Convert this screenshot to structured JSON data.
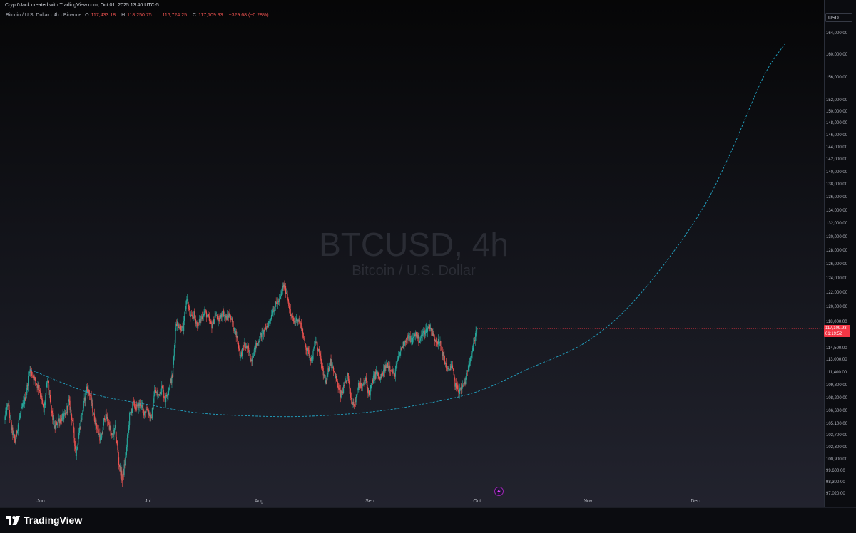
{
  "attribution": "Crypt0Jack created with TradingView.com, Oct 01, 2025 13:40 UTC-5",
  "legend": {
    "symbol": "Bitcoin / U.S. Dollar · 4h · Binance",
    "o_label": "O",
    "o_value": "117,433.18",
    "h_label": "H",
    "h_value": "118,250.75",
    "l_label": "L",
    "l_value": "116,724.25",
    "c_label": "C",
    "c_value": "117,109.93",
    "change": "−329.68 (−0.28%)"
  },
  "watermark": {
    "title": "BTCUSD, 4h",
    "subtitle": "Bitcoin / U.S. Dollar"
  },
  "currency": "USD",
  "price_label": {
    "price": "117,109.93",
    "countdown": "01:19:52"
  },
  "branding": {
    "logo_text": "TradingView"
  },
  "colors": {
    "up": "#26a69a",
    "down": "#ef5350",
    "curve": "#22a3c3",
    "last_price": "#f23645"
  },
  "icons": {
    "event_marker": "lightning-bolt-icon",
    "logo": "tradingview-logo-icon"
  },
  "chart_data": {
    "type": "candlestick",
    "interval": "4h",
    "price_scale": "log",
    "ylim": [
      97020,
      166000
    ],
    "price_ticks": [
      "164,000.00",
      "160,000.00",
      "156,000.00",
      "152,000.00",
      "150,000.00",
      "148,000.00",
      "146,000.00",
      "144,000.00",
      "142,000.00",
      "140,000.00",
      "138,000.00",
      "136,000.00",
      "134,000.00",
      "132,000.00",
      "130,000.00",
      "128,000.00",
      "126,000.00",
      "124,000.00",
      "122,000.00",
      "120,000.00",
      "118,000.00",
      "114,500.00",
      "113,000.00",
      "111,400.00",
      "109,800.00",
      "108,200.00",
      "106,600.00",
      "105,100.00",
      "103,700.00",
      "102,300.00",
      "100,900.00",
      "99,600.00",
      "98,300.00",
      "97,020.00"
    ],
    "time_ticks": [
      "Jun",
      "Jul",
      "Aug",
      "Sep",
      "Oct",
      "Nov",
      "Dec"
    ],
    "time_tick_dates": [
      "2025-06-01",
      "2025-07-01",
      "2025-08-01",
      "2025-09-01",
      "2025-10-01",
      "2025-11-01",
      "2025-12-01"
    ],
    "x_range": [
      "2025-05-22",
      "2025-12-30"
    ],
    "price_path": [
      [
        "2025-05-22",
        105500
      ],
      [
        "2025-05-23",
        107500
      ],
      [
        "2025-05-24",
        104500
      ],
      [
        "2025-05-25",
        103000
      ],
      [
        "2025-05-26",
        105500
      ],
      [
        "2025-05-28",
        108500
      ],
      [
        "2025-05-29",
        111800
      ],
      [
        "2025-05-30",
        111000
      ],
      [
        "2025-06-01",
        109000
      ],
      [
        "2025-06-02",
        106500
      ],
      [
        "2025-06-03",
        110500
      ],
      [
        "2025-06-04",
        107000
      ],
      [
        "2025-06-05",
        104500
      ],
      [
        "2025-06-06",
        105500
      ],
      [
        "2025-06-08",
        106000
      ],
      [
        "2025-06-09",
        107800
      ],
      [
        "2025-06-10",
        105500
      ],
      [
        "2025-06-11",
        101500
      ],
      [
        "2025-06-12",
        104500
      ],
      [
        "2025-06-13",
        107000
      ],
      [
        "2025-06-14",
        109500
      ],
      [
        "2025-06-15",
        108500
      ],
      [
        "2025-06-16",
        106000
      ],
      [
        "2025-06-17",
        104500
      ],
      [
        "2025-06-18",
        103000
      ],
      [
        "2025-06-19",
        106000
      ],
      [
        "2025-06-20",
        105500
      ],
      [
        "2025-06-21",
        103500
      ],
      [
        "2025-06-22",
        104500
      ],
      [
        "2025-06-23",
        100500
      ],
      [
        "2025-06-24",
        98500
      ],
      [
        "2025-06-25",
        101500
      ],
      [
        "2025-06-26",
        106000
      ],
      [
        "2025-06-27",
        107500
      ],
      [
        "2025-06-28",
        107000
      ],
      [
        "2025-06-29",
        107500
      ],
      [
        "2025-06-30",
        106500
      ],
      [
        "2025-07-01",
        107000
      ],
      [
        "2025-07-02",
        105500
      ],
      [
        "2025-07-03",
        109000
      ],
      [
        "2025-07-04",
        108500
      ],
      [
        "2025-07-05",
        109500
      ],
      [
        "2025-07-06",
        108000
      ],
      [
        "2025-07-07",
        109500
      ],
      [
        "2025-07-08",
        111000
      ],
      [
        "2025-07-09",
        118000
      ],
      [
        "2025-07-10",
        117500
      ],
      [
        "2025-07-11",
        117000
      ],
      [
        "2025-07-12",
        121500
      ],
      [
        "2025-07-13",
        118500
      ],
      [
        "2025-07-14",
        119000
      ],
      [
        "2025-07-15",
        117500
      ],
      [
        "2025-07-16",
        118500
      ],
      [
        "2025-07-17",
        119500
      ],
      [
        "2025-07-18",
        118500
      ],
      [
        "2025-07-19",
        117500
      ],
      [
        "2025-07-20",
        119000
      ],
      [
        "2025-07-21",
        118000
      ],
      [
        "2025-07-22",
        119500
      ],
      [
        "2025-07-23",
        118500
      ],
      [
        "2025-07-24",
        119000
      ],
      [
        "2025-07-25",
        117500
      ],
      [
        "2025-07-26",
        116000
      ],
      [
        "2025-07-27",
        113500
      ],
      [
        "2025-07-28",
        115000
      ],
      [
        "2025-07-29",
        114500
      ],
      [
        "2025-07-30",
        113000
      ],
      [
        "2025-07-31",
        114500
      ],
      [
        "2025-08-01",
        115500
      ],
      [
        "2025-08-02",
        116500
      ],
      [
        "2025-08-03",
        117000
      ],
      [
        "2025-08-04",
        118000
      ],
      [
        "2025-08-05",
        119500
      ],
      [
        "2025-08-06",
        120500
      ],
      [
        "2025-08-07",
        121000
      ],
      [
        "2025-08-08",
        123000
      ],
      [
        "2025-08-09",
        122000
      ],
      [
        "2025-08-10",
        119000
      ],
      [
        "2025-08-11",
        118000
      ],
      [
        "2025-08-12",
        118500
      ],
      [
        "2025-08-13",
        117500
      ],
      [
        "2025-08-14",
        115000
      ],
      [
        "2025-08-15",
        114000
      ],
      [
        "2025-08-16",
        113000
      ],
      [
        "2025-08-17",
        115500
      ],
      [
        "2025-08-18",
        114000
      ],
      [
        "2025-08-19",
        111500
      ],
      [
        "2025-08-20",
        110000
      ],
      [
        "2025-08-21",
        113000
      ],
      [
        "2025-08-22",
        112000
      ],
      [
        "2025-08-23",
        110000
      ],
      [
        "2025-08-24",
        108500
      ],
      [
        "2025-08-25",
        109500
      ],
      [
        "2025-08-26",
        111000
      ],
      [
        "2025-08-27",
        108000
      ],
      [
        "2025-08-28",
        107500
      ],
      [
        "2025-08-29",
        110000
      ],
      [
        "2025-08-30",
        109500
      ],
      [
        "2025-08-31",
        110500
      ],
      [
        "2025-09-01",
        108500
      ],
      [
        "2025-09-02",
        110500
      ],
      [
        "2025-09-03",
        111500
      ],
      [
        "2025-09-04",
        110500
      ],
      [
        "2025-09-05",
        111500
      ],
      [
        "2025-09-06",
        112500
      ],
      [
        "2025-09-07",
        112000
      ],
      [
        "2025-09-08",
        111000
      ],
      [
        "2025-09-09",
        113000
      ],
      [
        "2025-09-10",
        114500
      ],
      [
        "2025-09-11",
        115500
      ],
      [
        "2025-09-12",
        116000
      ],
      [
        "2025-09-13",
        115500
      ],
      [
        "2025-09-14",
        116500
      ],
      [
        "2025-09-15",
        115500
      ],
      [
        "2025-09-16",
        116500
      ],
      [
        "2025-09-17",
        117000
      ],
      [
        "2025-09-18",
        117500
      ],
      [
        "2025-09-19",
        116000
      ],
      [
        "2025-09-20",
        115500
      ],
      [
        "2025-09-21",
        115000
      ],
      [
        "2025-09-22",
        113000
      ],
      [
        "2025-09-23",
        111500
      ],
      [
        "2025-09-24",
        112500
      ],
      [
        "2025-09-25",
        110000
      ],
      [
        "2025-09-26",
        109000
      ],
      [
        "2025-09-27",
        109500
      ],
      [
        "2025-09-28",
        110500
      ],
      [
        "2025-09-29",
        113000
      ],
      [
        "2025-09-30",
        114500
      ],
      [
        "2025-10-01",
        117109.93
      ]
    ],
    "curve_path": [
      [
        "2025-05-29",
        111800
      ],
      [
        "2025-06-15",
        108800
      ],
      [
        "2025-07-01",
        107400
      ],
      [
        "2025-07-15",
        106400
      ],
      [
        "2025-08-01",
        106000
      ],
      [
        "2025-08-15",
        106000
      ],
      [
        "2025-09-01",
        106500
      ],
      [
        "2025-09-15",
        107400
      ],
      [
        "2025-10-01",
        109000
      ],
      [
        "2025-10-15",
        111800
      ],
      [
        "2025-11-01",
        115500
      ],
      [
        "2025-11-15",
        121500
      ],
      [
        "2025-12-01",
        132500
      ],
      [
        "2025-12-10",
        142000
      ],
      [
        "2025-12-20",
        156000
      ],
      [
        "2025-12-26",
        162000
      ]
    ]
  }
}
